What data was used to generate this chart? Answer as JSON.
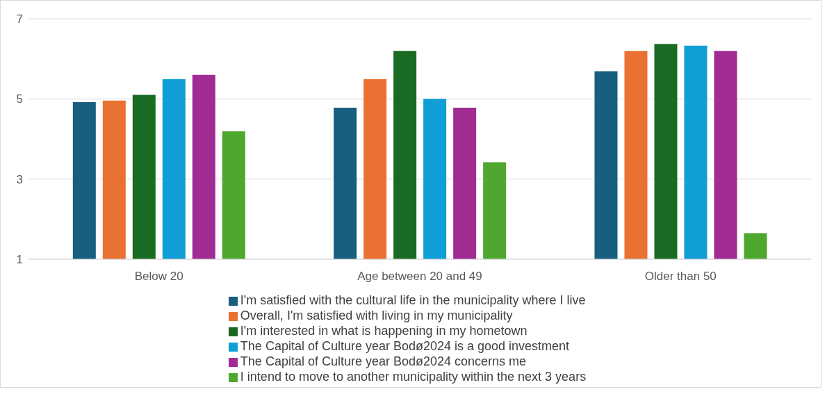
{
  "chart_data": {
    "type": "bar",
    "categories": [
      "Below 20",
      "Age between 20 and 49",
      "Older than 50"
    ],
    "series": [
      {
        "name": "I'm satisfied with the cultural life in the municipality where I live",
        "color": "#175e7f",
        "values": [
          4.92,
          4.78,
          5.69
        ]
      },
      {
        "name": "Overall, I'm satisfied with living in my municipality",
        "color": "#e97132",
        "values": [
          4.96,
          5.49,
          6.2
        ]
      },
      {
        "name": "I'm interested in what is happening in my hometown",
        "color": "#196b24",
        "values": [
          5.1,
          6.2,
          6.37
        ]
      },
      {
        "name": "The Capital of Culture year Bodø2024 is a good investment",
        "color": "#0f9ed5",
        "values": [
          5.49,
          5.0,
          6.33
        ]
      },
      {
        "name": "The Capital of Culture year Bodø2024 concerns me",
        "color": "#a02b93",
        "values": [
          5.6,
          4.78,
          6.2
        ]
      },
      {
        "name": "I intend to move to another municipality within the next 3 years",
        "color": "#4ea72e",
        "values": [
          4.19,
          3.42,
          1.65
        ]
      }
    ],
    "ylim": [
      1,
      7
    ],
    "yticks": [
      1,
      3,
      5,
      7
    ],
    "grid": "y",
    "legend": "bottom"
  }
}
